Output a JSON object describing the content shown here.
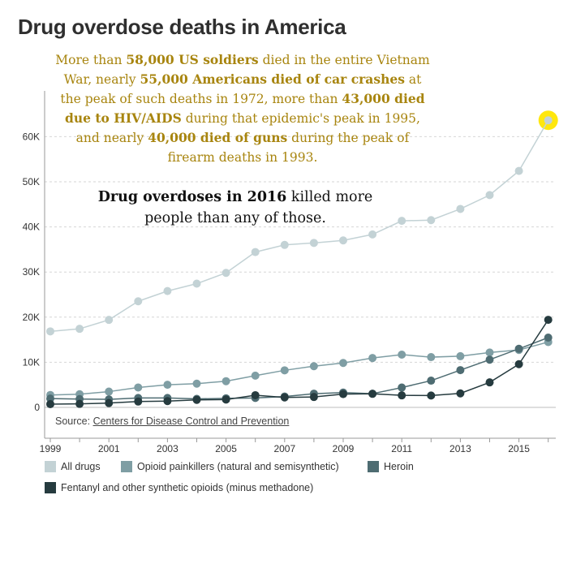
{
  "colors": {
    "annotation_gold": "#a8850f",
    "highlight": "#ffe600"
  },
  "chart_data": {
    "type": "line",
    "title": "Drug overdose deaths in America",
    "x": [
      1999,
      2000,
      2001,
      2002,
      2003,
      2004,
      2005,
      2006,
      2007,
      2008,
      2009,
      2010,
      2011,
      2012,
      2013,
      2014,
      2015,
      2016
    ],
    "x_tick_labels": [
      "1999",
      "2001",
      "2003",
      "2005",
      "2007",
      "2009",
      "2011",
      "2013",
      "2015"
    ],
    "y_tick_labels": [
      "0",
      "10K",
      "20K",
      "30K",
      "40K",
      "50K",
      "60K"
    ],
    "ylim": [
      0,
      70000
    ],
    "grid": true,
    "legend_position": "bottom",
    "series": [
      {
        "name": "All drugs",
        "color": "#c3d2d5",
        "values": [
          16849,
          17415,
          19394,
          23518,
          25785,
          27424,
          29813,
          34425,
          36010,
          36450,
          37004,
          38329,
          41340,
          41502,
          43982,
          47055,
          52404,
          63632
        ]
      },
      {
        "name": "Opioid painkillers (natural and semisynthetic)",
        "color": "#7f9ea4",
        "values": [
          2749,
          2917,
          3497,
          4416,
          5016,
          5259,
          5806,
          7039,
          8216,
          9131,
          9850,
          10943,
          11693,
          11140,
          11346,
          12159,
          12727,
          14487
        ]
      },
      {
        "name": "Heroin",
        "color": "#4e6c72",
        "values": [
          1960,
          1842,
          1779,
          2089,
          2080,
          1878,
          2009,
          2088,
          2399,
          3041,
          3278,
          3036,
          4397,
          5925,
          8257,
          10574,
          12989,
          15469
        ]
      },
      {
        "name": "Fentanyl and other synthetic opioids (minus methadone)",
        "color": "#263b3f",
        "values": [
          730,
          782,
          957,
          1295,
          1400,
          1664,
          1742,
          2707,
          2213,
          2306,
          2946,
          3007,
          2666,
          2628,
          3105,
          5544,
          9580,
          19413
        ]
      }
    ]
  },
  "annotation_1": {
    "t1": "More than ",
    "b1": "58,000 US soldiers",
    "t2": " died in the entire Vietnam War, nearly ",
    "b2": "55,000 Americans died of car crashes",
    "t3": " at the peak of such deaths in 1972, more than ",
    "b3": "43,000 died due to HIV/AIDS",
    "t4": " during that epidemic's peak in 1995, and nearly ",
    "b4": "40,000 died of guns",
    "t5": " during the peak of firearm deaths in 1993."
  },
  "annotation_2": {
    "b1": "Drug overdoses in 2016",
    "t1": " killed more people than any of those."
  },
  "source": {
    "prefix": "Source: ",
    "link_text": "Centers for Disease Control and Prevention"
  }
}
